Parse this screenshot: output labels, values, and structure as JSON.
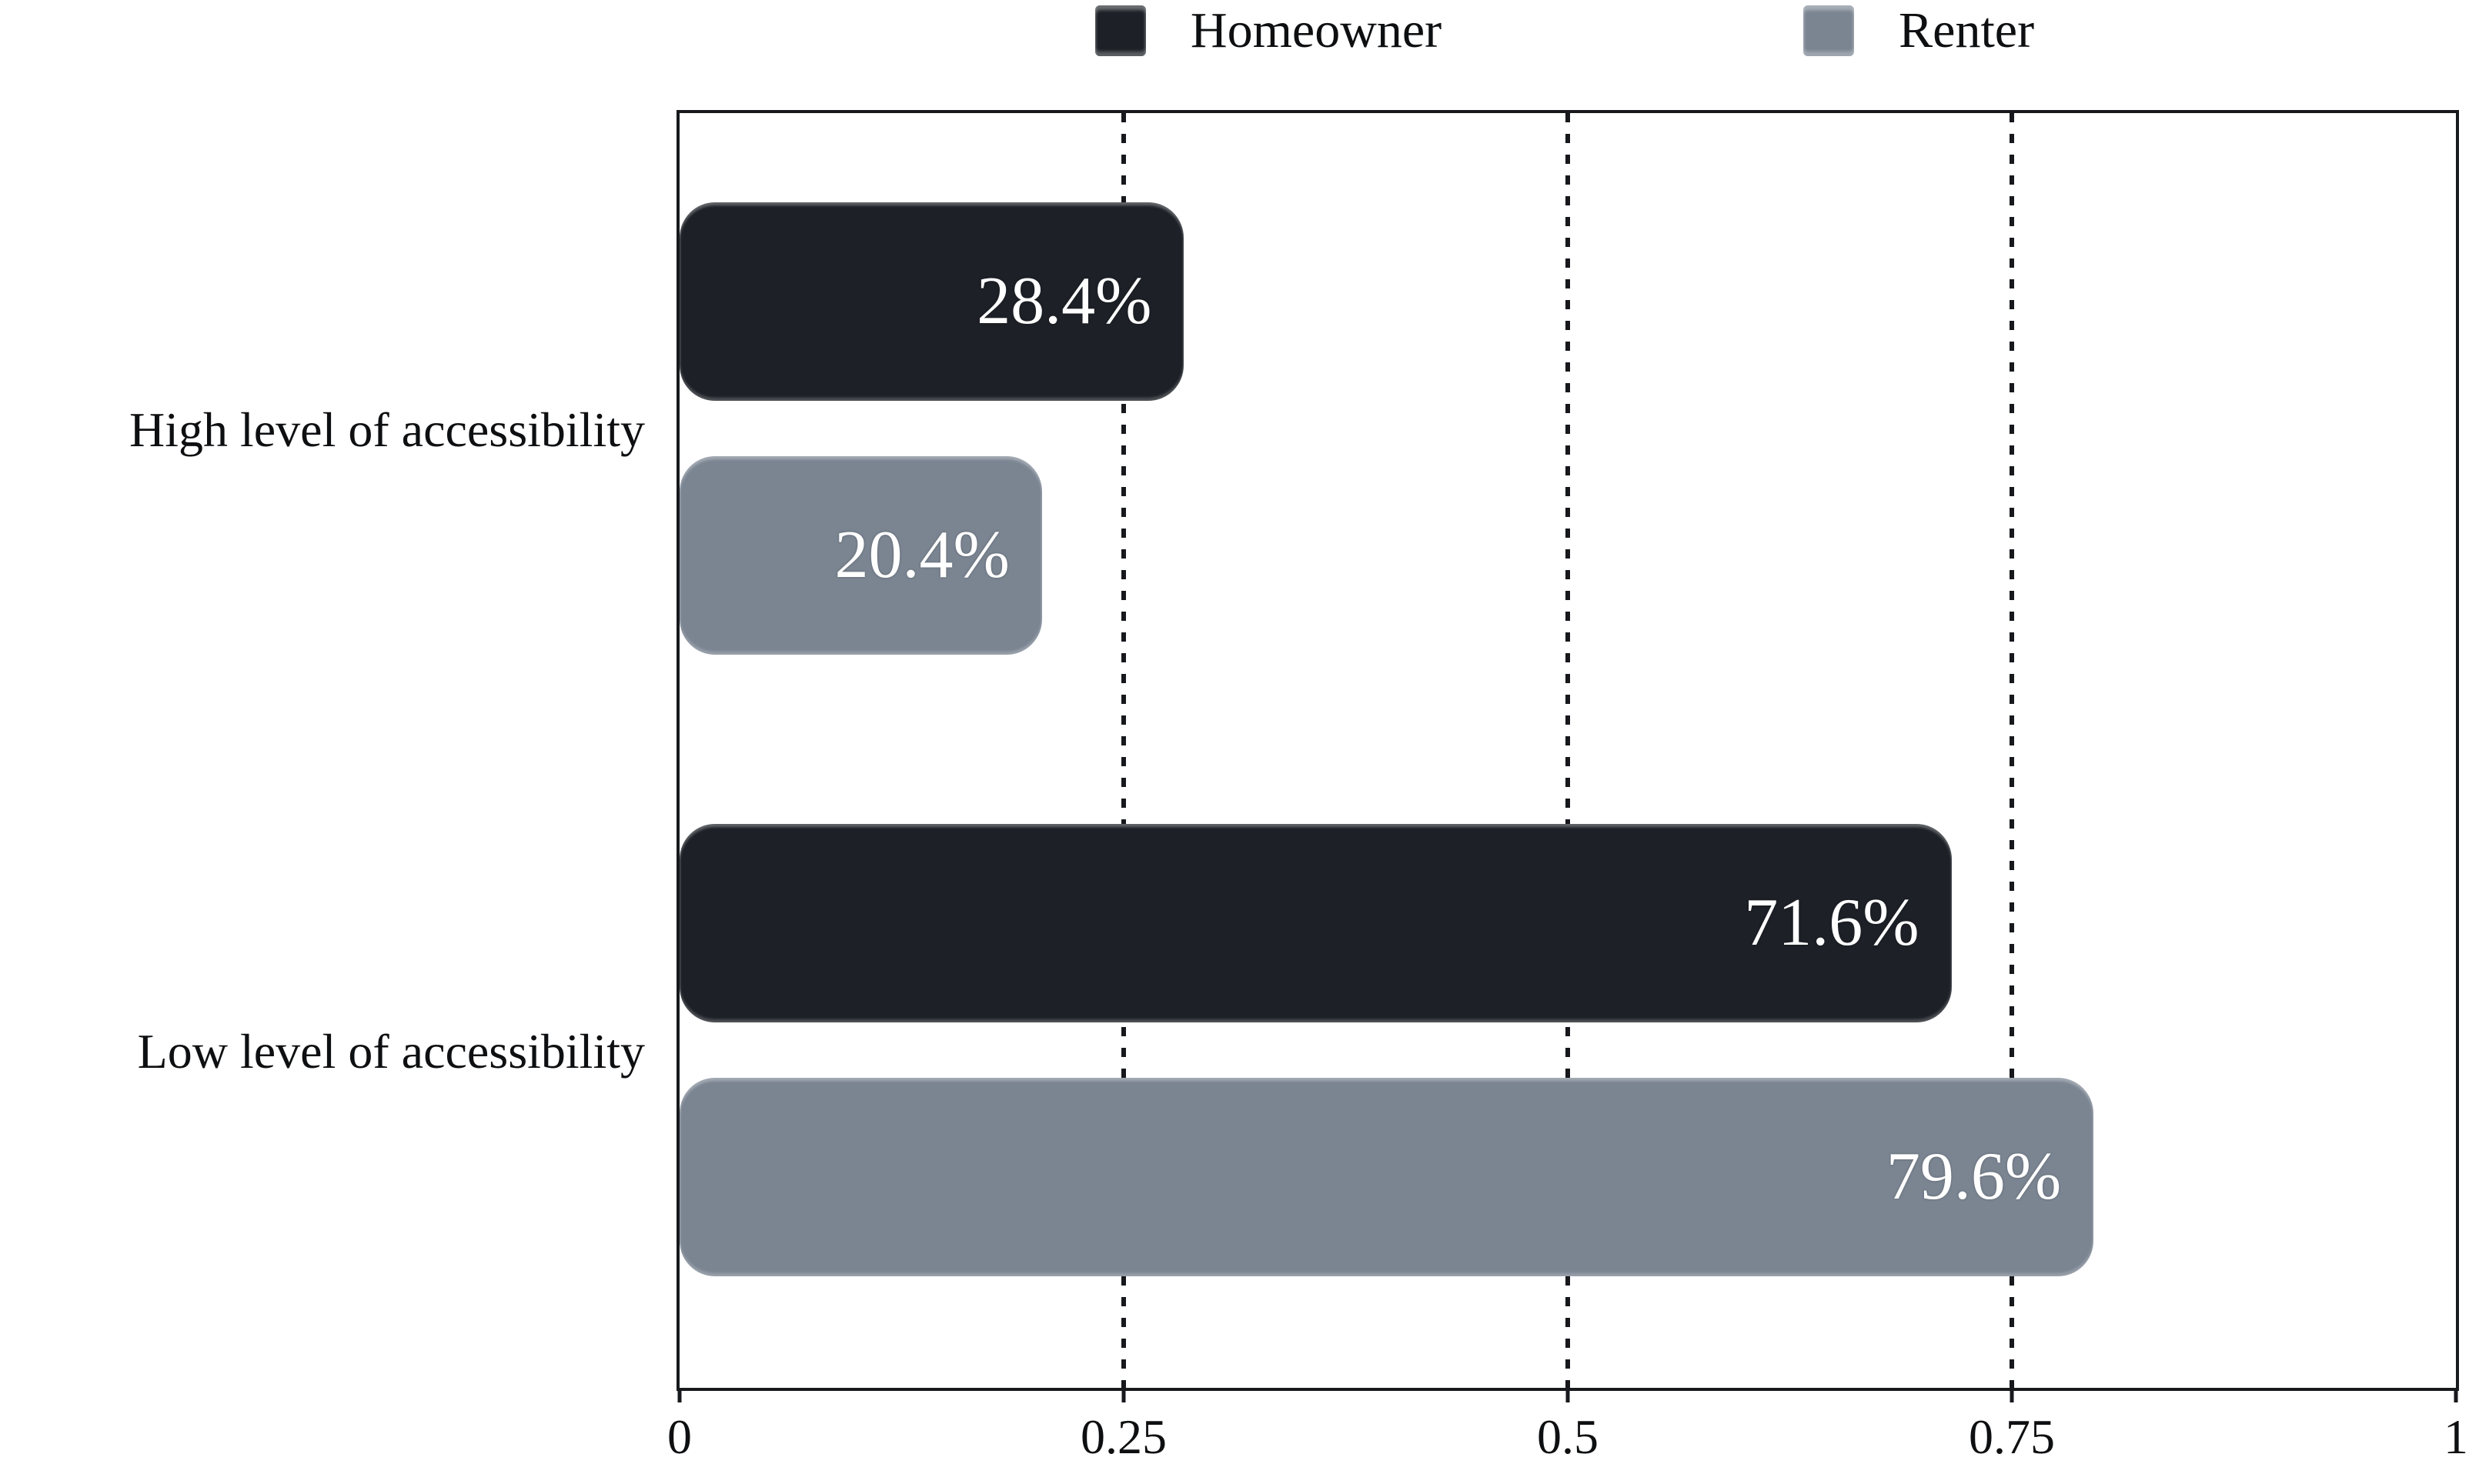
{
  "chart_data": {
    "type": "bar",
    "orientation": "horizontal",
    "title": "",
    "xlabel": "",
    "ylabel": "",
    "xlim": [
      0,
      1
    ],
    "grid": {
      "vertical_dashed_lines_at": [
        0.25,
        0.5,
        0.75
      ]
    },
    "legend_position": "top",
    "categories": [
      "High level of accessibility",
      "Low level of accessibility"
    ],
    "series": [
      {
        "name": "Homeowner",
        "color": "#1d2127",
        "values": [
          0.284,
          0.716
        ],
        "labels": [
          "28.4%",
          "71.6%"
        ]
      },
      {
        "name": "Renter",
        "color": "#7b8592",
        "values": [
          0.204,
          0.796
        ],
        "labels": [
          "20.4%",
          "79.6%"
        ]
      }
    ],
    "x_ticks": [
      {
        "value": 0,
        "label": "0"
      },
      {
        "value": 0.25,
        "label": "0.25"
      },
      {
        "value": 0.5,
        "label": "0.5"
      },
      {
        "value": 0.75,
        "label": "0.75"
      },
      {
        "value": 1,
        "label": "1"
      }
    ],
    "value_label_color": "#ffffff",
    "text_color": "#0e0f11"
  }
}
